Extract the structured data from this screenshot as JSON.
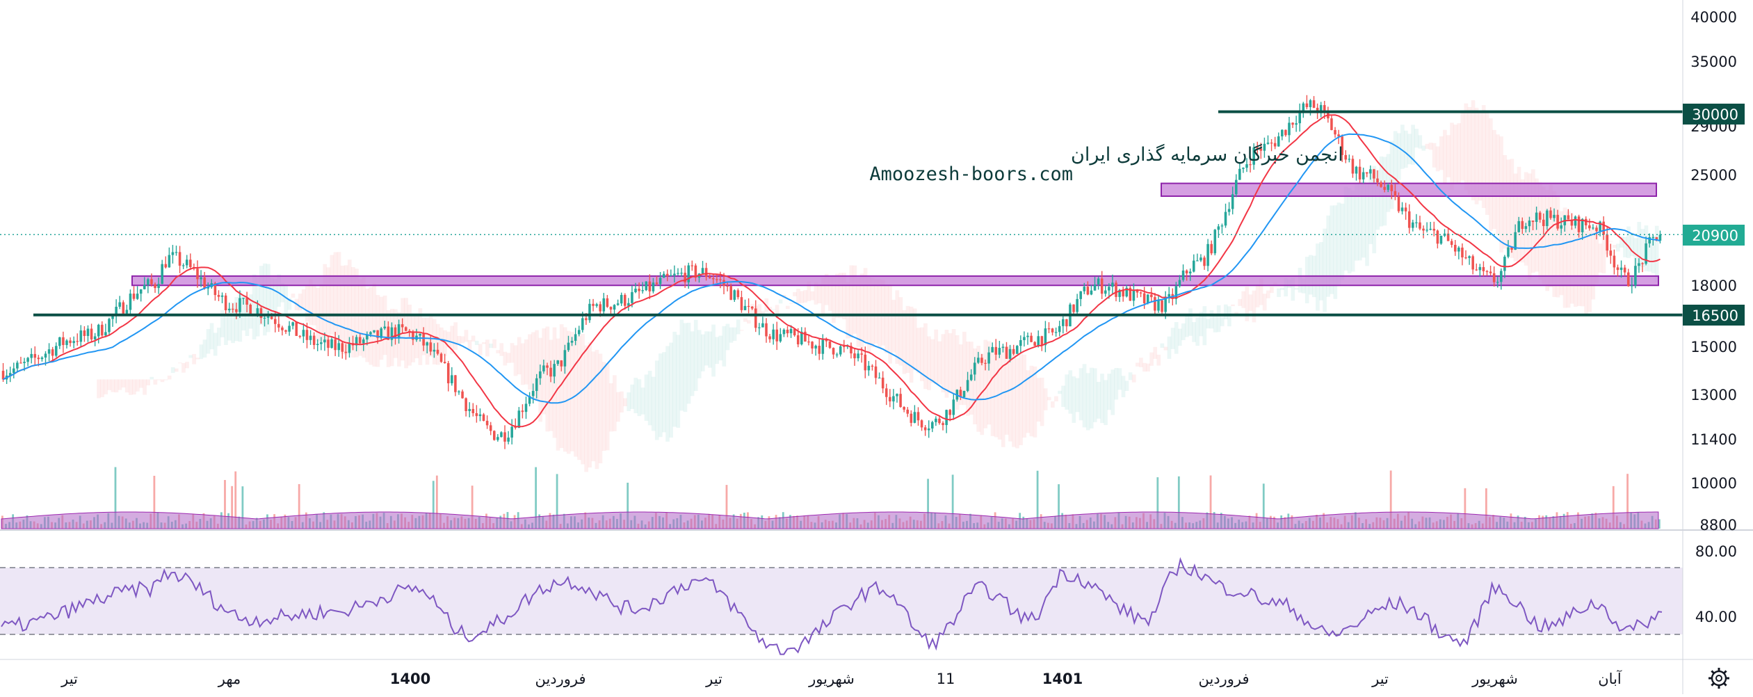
{
  "watermark": {
    "line1": "انجمن خبرگان سرمایه گذاری ایران",
    "line2": "Amoozesh-boors.com"
  },
  "price_axis": {
    "ticks": [
      "40000",
      "35000",
      "29000",
      "25000",
      "18000",
      "15000",
      "13000",
      "11400",
      "10000",
      "8800"
    ]
  },
  "levels": [
    {
      "label": "30000",
      "value": 30000,
      "color": "#0b4f45"
    },
    {
      "label": "16500",
      "value": 16500,
      "color": "#0b4f45"
    }
  ],
  "last_price": {
    "label": "20900",
    "value": 20900,
    "color": "#22ab94"
  },
  "rsi_axis": {
    "ticks": [
      "80.00",
      "40.00"
    ]
  },
  "time_axis": {
    "ticks": [
      "تیر",
      "مهر",
      "1400",
      "فروردین",
      "تیر",
      "شهریور",
      "11",
      "1401",
      "فروردین",
      "تیر",
      "شهریور",
      "آبان"
    ]
  },
  "icons": {
    "settings": "gear-icon"
  },
  "colors": {
    "up": "#26a69a",
    "down": "#ef5350",
    "ma_fast": "#f23645",
    "ma_slow": "#2196f3",
    "zone_fill": "#c77fd8",
    "zone_border": "#8e24aa",
    "volume": "#b168c6",
    "rsi_line": "#7e57c2",
    "rsi_band": "#ede7f6",
    "level_line": "#0b4f45"
  },
  "chart_data": [
    {
      "type": "candlestick",
      "scale": "log",
      "y_range": [
        8800,
        40000
      ],
      "horizontal_levels": [
        30000,
        16500
      ],
      "zones": [
        [
          18000,
          18500
        ],
        [
          23400,
          24300
        ]
      ],
      "last_price": 20900,
      "moving_averages": [
        "fast",
        "slow"
      ],
      "series_anchors": [
        {
          "t": 0,
          "close": 14000
        },
        {
          "t": 0.05,
          "close": 15500
        },
        {
          "t": 0.09,
          "close": 18000
        },
        {
          "t": 0.1,
          "close": 19500
        },
        {
          "t": 0.14,
          "close": 17000
        },
        {
          "t": 0.2,
          "close": 15000
        },
        {
          "t": 0.24,
          "close": 15700
        },
        {
          "t": 0.3,
          "close": 11600
        },
        {
          "t": 0.33,
          "close": 14000
        },
        {
          "t": 0.36,
          "close": 17000
        },
        {
          "t": 0.42,
          "close": 18700
        },
        {
          "t": 0.47,
          "close": 15500
        },
        {
          "t": 0.5,
          "close": 15000
        },
        {
          "t": 0.56,
          "close": 12000
        },
        {
          "t": 0.6,
          "close": 14800
        },
        {
          "t": 0.63,
          "close": 15500
        },
        {
          "t": 0.66,
          "close": 18000
        },
        {
          "t": 0.7,
          "close": 17000
        },
        {
          "t": 0.72,
          "close": 19200
        },
        {
          "t": 0.76,
          "close": 27000
        },
        {
          "t": 0.79,
          "close": 30500
        },
        {
          "t": 0.82,
          "close": 25000
        },
        {
          "t": 0.86,
          "close": 21000
        },
        {
          "t": 0.9,
          "close": 18300
        },
        {
          "t": 0.92,
          "close": 22000
        },
        {
          "t": 0.96,
          "close": 21500
        },
        {
          "t": 0.98,
          "close": 18300
        },
        {
          "t": 1,
          "close": 20900
        }
      ]
    },
    {
      "type": "line",
      "name": "RSI",
      "y_range": [
        20,
        100
      ],
      "bands": [
        70,
        30
      ],
      "series_anchors": [
        {
          "t": 0,
          "v": 40
        },
        {
          "t": 0.09,
          "v": 65
        },
        {
          "t": 0.1,
          "v": 75
        },
        {
          "t": 0.15,
          "v": 45
        },
        {
          "t": 0.2,
          "v": 50
        },
        {
          "t": 0.25,
          "v": 65
        },
        {
          "t": 0.28,
          "v": 35
        },
        {
          "t": 0.34,
          "v": 70
        },
        {
          "t": 0.38,
          "v": 52
        },
        {
          "t": 0.42,
          "v": 70
        },
        {
          "t": 0.47,
          "v": 25
        },
        {
          "t": 0.53,
          "v": 65
        },
        {
          "t": 0.56,
          "v": 30
        },
        {
          "t": 0.59,
          "v": 65
        },
        {
          "t": 0.62,
          "v": 45
        },
        {
          "t": 0.64,
          "v": 75
        },
        {
          "t": 0.69,
          "v": 45
        },
        {
          "t": 0.71,
          "v": 80
        },
        {
          "t": 0.74,
          "v": 65
        },
        {
          "t": 0.77,
          "v": 55
        },
        {
          "t": 0.8,
          "v": 35
        },
        {
          "t": 0.84,
          "v": 55
        },
        {
          "t": 0.88,
          "v": 30
        },
        {
          "t": 0.9,
          "v": 65
        },
        {
          "t": 0.93,
          "v": 40
        },
        {
          "t": 0.96,
          "v": 55
        },
        {
          "t": 0.98,
          "v": 38
        },
        {
          "t": 1,
          "v": 48
        }
      ]
    }
  ]
}
